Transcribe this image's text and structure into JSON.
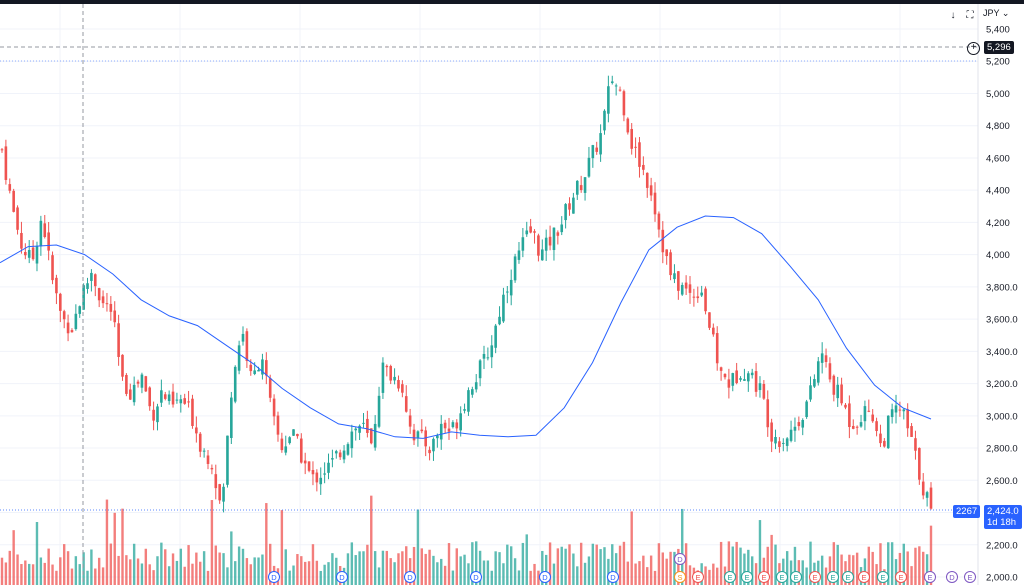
{
  "toolbar": {
    "currency": "JPY",
    "icons": [
      "download-arrow-icon",
      "fullscreen-icon",
      "snapshot-icon"
    ]
  },
  "crosshair_price": "5,296",
  "last_price": "2,424.0",
  "countdown": "1d 18h",
  "low_label": "2267",
  "colors": {
    "up": "#26a69a",
    "down": "#ef5350",
    "sma": "#2962ff",
    "badge": "#131722",
    "last": "#2962ff"
  },
  "chart_data": {
    "type": "candlestick",
    "currency": "JPY",
    "ylim": [
      2000,
      5400
    ],
    "y_ticks": [
      2000,
      2200,
      2400,
      2600,
      2800,
      3000,
      3200,
      3400,
      3600,
      3800,
      4000,
      4200,
      4400,
      4600,
      4800,
      5000,
      5200,
      5400
    ],
    "y_tick_labels": [
      "2,000.0",
      "2,200.0",
      "2,400.0",
      "2,600.0",
      "2,800.0",
      "3,000.0",
      "3,200.0",
      "3,400.0",
      "3,600.0",
      "3,800.0",
      "4,000",
      "4,200",
      "4,400",
      "4,600",
      "4,800",
      "5,000",
      "5,200",
      "5,400"
    ],
    "grid": true,
    "close_path": [
      4650,
      4300,
      4050,
      3950,
      4250,
      3850,
      3600,
      3550,
      3750,
      3900,
      3700,
      3650,
      3200,
      3150,
      3250,
      3000,
      3150,
      3050,
      3100,
      3000,
      2800,
      2720,
      2400,
      3200,
      3550,
      3200,
      3400,
      3000,
      2800,
      2900,
      2750,
      2600,
      2650,
      2700,
      2800,
      2900,
      2950,
      2800,
      3300,
      3250,
      3200,
      2900,
      2850,
      2800,
      2950,
      2900,
      3050,
      3200,
      3300,
      3450,
      3700,
      3900,
      4050,
      4150,
      4000,
      4100,
      4200,
      4350,
      4450,
      4600,
      4750,
      5100,
      5000,
      4700,
      4550,
      4400,
      4100,
      3850,
      3800,
      3750,
      3800,
      3500,
      3250,
      3200,
      3300,
      3250,
      3150,
      2900,
      2850,
      2900,
      3000,
      3150,
      3400,
      3200,
      3100,
      2950,
      3000,
      3050,
      2800,
      3000,
      3050,
      2850,
      2600,
      2424
    ],
    "sma_path": [
      3950,
      4050,
      4060,
      4000,
      3880,
      3720,
      3620,
      3560,
      3440,
      3320,
      3170,
      3050,
      2950,
      2920,
      2870,
      2860,
      2900,
      2880,
      2870,
      2880,
      3050,
      3330,
      3700,
      4030,
      4170,
      4240,
      4230,
      4130,
      3930,
      3720,
      3420,
      3190,
      3050,
      2980
    ],
    "volume_max": 100,
    "event_markers": {
      "upper": [
        {
          "label": "D",
          "color": "#7e57c2"
        }
      ],
      "lower": [
        {
          "label": "D",
          "color": "#2962ff"
        },
        {
          "label": "D",
          "color": "#2962ff"
        },
        {
          "label": "D",
          "color": "#2962ff"
        },
        {
          "label": "D",
          "color": "#2962ff"
        },
        {
          "label": "D",
          "color": "#2962ff"
        },
        {
          "label": "D",
          "color": "#2962ff"
        },
        {
          "label": "S",
          "color": "#f7931a"
        },
        {
          "label": "E",
          "color": "#ef5350"
        },
        {
          "label": "E",
          "color": "#26a69a"
        },
        {
          "label": "E",
          "color": "#26a69a"
        },
        {
          "label": "E",
          "color": "#ef5350"
        },
        {
          "label": "E",
          "color": "#26a69a"
        },
        {
          "label": "E",
          "color": "#26a69a"
        },
        {
          "label": "E",
          "color": "#ef5350"
        },
        {
          "label": "E",
          "color": "#26a69a"
        },
        {
          "label": "E",
          "color": "#26a69a"
        },
        {
          "label": "E",
          "color": "#ef5350"
        },
        {
          "label": "E",
          "color": "#26a69a"
        },
        {
          "label": "E",
          "color": "#ef5350"
        },
        {
          "label": "E",
          "color": "#7e57c2"
        },
        {
          "label": "D",
          "color": "#7e57c2"
        },
        {
          "label": "E",
          "color": "#7e57c2"
        }
      ]
    }
  }
}
